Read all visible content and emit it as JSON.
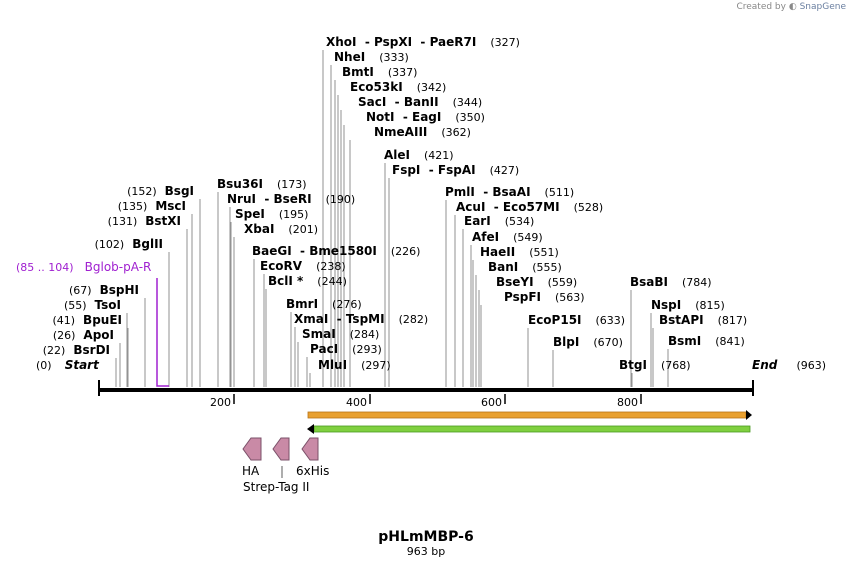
{
  "credit": {
    "prefix": "Created by",
    "brand": "SnapGene"
  },
  "plasmid": {
    "name": "pHLmMBP-6",
    "length_label": "963 bp",
    "length": 963
  },
  "axis": {
    "ticks": [
      "200",
      "400",
      "600",
      "800"
    ]
  },
  "start_marker": {
    "position": "(0)",
    "label": "Start"
  },
  "end_marker": {
    "position": "(963)",
    "label": "End"
  },
  "primer": {
    "range": "(85 .. 104)",
    "name": "Bglob-pA-R"
  },
  "sites": [
    {
      "name": "BsrDI",
      "pos": "(22)"
    },
    {
      "name": "ApoI",
      "pos": "(26)"
    },
    {
      "name": "BpuEI",
      "pos": "(41)"
    },
    {
      "name": "TsoI",
      "pos": "(55)"
    },
    {
      "name": "BspHI",
      "pos": "(67)"
    },
    {
      "name": "BglII",
      "pos": "(102)"
    },
    {
      "name": "BstXI",
      "pos": "(131)"
    },
    {
      "name": "MscI",
      "pos": "(135)"
    },
    {
      "name": "BsgI",
      "pos": "(152)"
    },
    {
      "name": "Bsu36I",
      "pos": "(173)"
    },
    {
      "name": "NruI  - BseRI",
      "pos": "(190)"
    },
    {
      "name": "SpeI",
      "pos": "(195)"
    },
    {
      "name": "XbaI",
      "pos": "(201)"
    },
    {
      "name": "BaeGI  - Bme1580I",
      "pos": "(226)"
    },
    {
      "name": "EcoRV",
      "pos": "(238)"
    },
    {
      "name": "BclI *",
      "pos": "(244)"
    },
    {
      "name": "BmrI",
      "pos": "(276)"
    },
    {
      "name": "XmaI  - TspMI",
      "pos": "(282)"
    },
    {
      "name": "SmaI",
      "pos": "(284)"
    },
    {
      "name": "PacI",
      "pos": "(293)"
    },
    {
      "name": "MluI",
      "pos": "(297)"
    },
    {
      "name": "XhoI  - PspXI  - PaeR7I",
      "pos": "(327)"
    },
    {
      "name": "NheI",
      "pos": "(333)"
    },
    {
      "name": "BmtI",
      "pos": "(337)"
    },
    {
      "name": "Eco53kI",
      "pos": "(342)"
    },
    {
      "name": "SacI  - BanII",
      "pos": "(344)"
    },
    {
      "name": "NotI  - EagI",
      "pos": "(350)"
    },
    {
      "name": "NmeAIII",
      "pos": "(362)"
    },
    {
      "name": "AleI",
      "pos": "(421)"
    },
    {
      "name": "FspI  - FspAI",
      "pos": "(427)"
    },
    {
      "name": "PmlI  - BsaAI",
      "pos": "(511)"
    },
    {
      "name": "AcuI  - Eco57MI",
      "pos": "(528)"
    },
    {
      "name": "EarI",
      "pos": "(534)"
    },
    {
      "name": "AfeI",
      "pos": "(549)"
    },
    {
      "name": "HaeII",
      "pos": "(551)"
    },
    {
      "name": "BanI",
      "pos": "(555)"
    },
    {
      "name": "BseYI",
      "pos": "(559)"
    },
    {
      "name": "PspFI",
      "pos": "(563)"
    },
    {
      "name": "EcoP15I",
      "pos": "(633)"
    },
    {
      "name": "BlpI",
      "pos": "(670)"
    },
    {
      "name": "BtgI",
      "pos": "(768)"
    },
    {
      "name": "BsaBI",
      "pos": "(784)"
    },
    {
      "name": "NspI",
      "pos": "(815)"
    },
    {
      "name": "BstAPI",
      "pos": "(817)"
    },
    {
      "name": "BsmI",
      "pos": "(841)"
    }
  ],
  "features": {
    "tags": [
      "HA",
      "Strep-Tag II",
      "6xHis"
    ],
    "colors": {
      "forward_arrow": "#e8a030",
      "reverse_arrow": "#80d040",
      "tag_fill": "#c98aa6",
      "primer": "#a020d0"
    }
  }
}
